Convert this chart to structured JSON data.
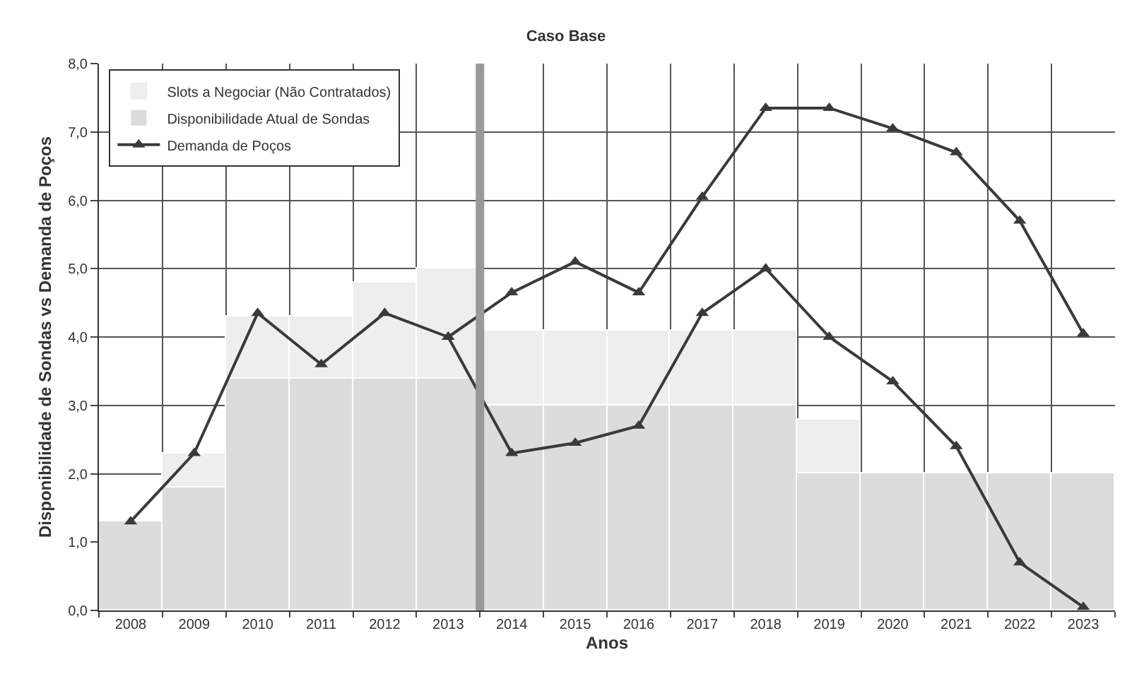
{
  "chart_data": {
    "type": "bar",
    "stacked": true,
    "title": "Caso Base",
    "xlabel": "Anos",
    "ylabel": "Disponibilidade de Sondas vs Demanda de Poços",
    "x": [
      2008,
      2009,
      2010,
      2011,
      2012,
      2013,
      2014,
      2015,
      2016,
      2017,
      2018,
      2019,
      2020,
      2021,
      2022,
      2023
    ],
    "series": [
      {
        "name": "Disponibilidade Atual de Sondas",
        "color": "#dcdcdc",
        "values": [
          1.3,
          1.8,
          3.4,
          3.4,
          3.4,
          3.4,
          3.0,
          3.0,
          3.0,
          3.0,
          3.0,
          2.0,
          2.0,
          2.0,
          2.0,
          2.0
        ]
      },
      {
        "name": "Slots a Negociar (Não Contratados)",
        "color": "#eeeeee",
        "values": [
          0.0,
          0.5,
          0.9,
          0.9,
          1.4,
          1.6,
          1.1,
          1.1,
          1.1,
          1.1,
          1.1,
          0.8,
          0.0,
          0.0,
          0.0,
          0.0
        ]
      },
      {
        "name": "Demanda de Poços",
        "type": "line",
        "color": "#3a3a3a",
        "values": [
          1.3,
          2.3,
          4.35,
          3.6,
          4.35,
          4.0,
          2.3,
          2.45,
          2.7,
          4.35,
          5.0,
          4.0,
          3.35,
          2.4,
          0.7,
          0.05
        ]
      },
      {
        "type": "line",
        "color": "#3a3a3a",
        "values": [
          null,
          null,
          null,
          null,
          null,
          4.0,
          4.65,
          5.1,
          4.65,
          6.05,
          7.35,
          7.35,
          7.05,
          6.7,
          5.7,
          4.05
        ]
      }
    ],
    "marker": "triangle",
    "line_style": "solid",
    "xlim": [
      2007.5,
      2023.5
    ],
    "xticks": [
      2008,
      2009,
      2010,
      2011,
      2012,
      2013,
      2014,
      2015,
      2016,
      2017,
      2018,
      2019,
      2020,
      2021,
      2022,
      2023
    ],
    "ylim": [
      0,
      8
    ],
    "yticks": [
      {
        "value": 0,
        "label": "0,0"
      },
      {
        "value": 1,
        "label": "1,0"
      },
      {
        "value": 2,
        "label": "2,0"
      },
      {
        "value": 3,
        "label": "3,0"
      },
      {
        "value": 4,
        "label": "4,0"
      },
      {
        "value": 5,
        "label": "5,0"
      },
      {
        "value": 6,
        "label": "6,0"
      },
      {
        "value": 7,
        "label": "7,0"
      },
      {
        "value": 8,
        "label": "8,0"
      }
    ],
    "ref_lines": [
      {
        "axis": "x",
        "value": 2013.5,
        "color": "#999999"
      }
    ],
    "grid": true,
    "legend": "top left"
  }
}
